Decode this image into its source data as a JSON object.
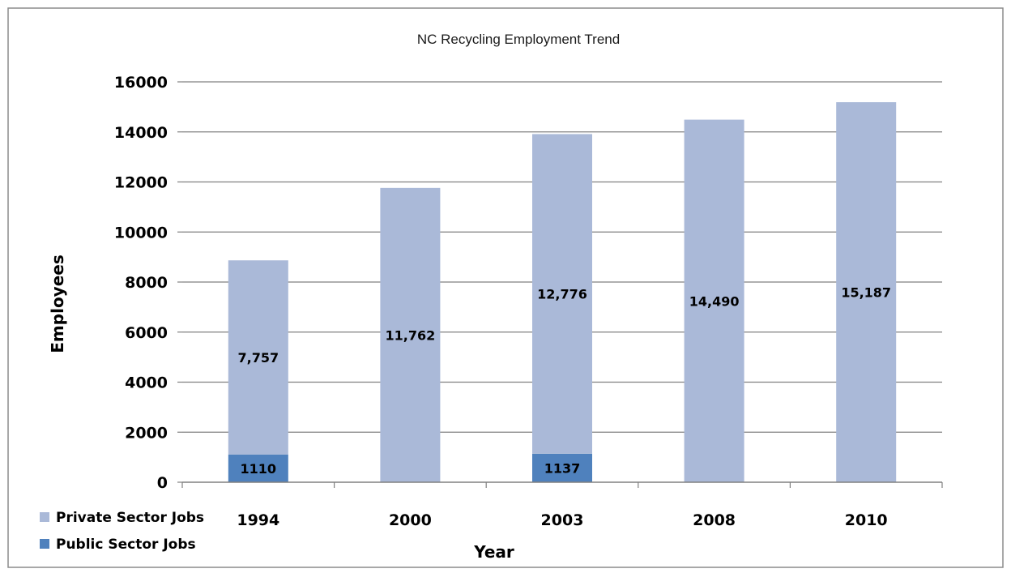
{
  "chart_data": {
    "type": "bar",
    "stacked": true,
    "title": "NC Recycling Employment Trend",
    "xlabel": "Year",
    "ylabel": "Employees",
    "categories": [
      "1994",
      "2000",
      "2003",
      "2008",
      "2010"
    ],
    "series": [
      {
        "name": "Public Sector Jobs",
        "color": "#4f81bd",
        "values": [
          1110,
          0,
          1137,
          0,
          0
        ],
        "labels": [
          "1110",
          "",
          "1137",
          "",
          ""
        ]
      },
      {
        "name": "Private Sector Jobs",
        "color": "#aab9d8",
        "values": [
          7757,
          11762,
          12776,
          14490,
          15187
        ],
        "labels": [
          "7,757",
          "11,762",
          "12,776",
          "14,490",
          "15,187"
        ]
      }
    ],
    "ylim": [
      0,
      16000
    ],
    "yticks": [
      "0",
      "2000",
      "4000",
      "6000",
      "8000",
      "10000",
      "12000",
      "14000",
      "16000"
    ],
    "grid": true,
    "gridColor": "#808080",
    "legend": "bottom-left",
    "legendOrder": [
      "Private Sector Jobs",
      "Public Sector Jobs"
    ]
  }
}
